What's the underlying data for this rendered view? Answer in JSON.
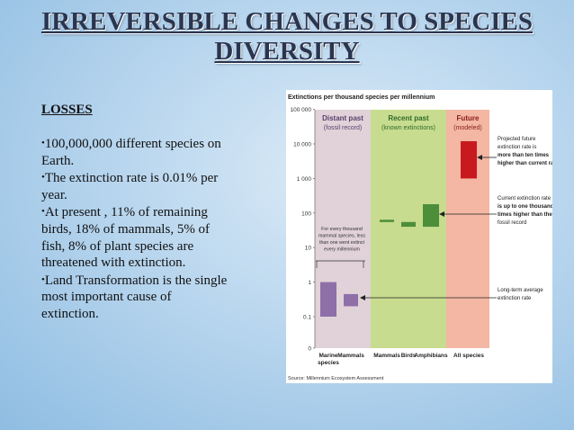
{
  "slide": {
    "title_line1": "IRREVERSIBLE CHANGES TO SPECIES",
    "title_line2": "DIVERSITY",
    "heading": "LOSSES",
    "bullets": [
      "100,000,000 different species on Earth.",
      "The extinction rate is 0.01% per year.",
      "At present , 11% of remaining birds, 18% of mammals, 5% of fish, 8% of plant species are threatened with extinction.",
      "Land Transformation is the single most important cause of extinction."
    ]
  },
  "chart_data": {
    "type": "bar",
    "title": "Extinctions per thousand species per millennium",
    "y_scale": "log",
    "y_ticks": [
      "100 000",
      "10 000",
      "1 000",
      "100",
      "10",
      "1",
      "0.1",
      "0"
    ],
    "panels": [
      {
        "title": "Distant past",
        "subtitle": "(fossil record)",
        "color": "#e0d2d8"
      },
      {
        "title": "Recent past",
        "subtitle": "(known extinctions)",
        "color": "#c7dc8e"
      },
      {
        "title": "Future",
        "subtitle": "(modeled)",
        "color": "#f3b7a3"
      }
    ],
    "categories": [
      "Marine species",
      "Mammals",
      "Mammals",
      "Birds",
      "Amphibians",
      "All species"
    ],
    "series": [
      {
        "category": "Marine species",
        "panel": "Distant past",
        "low": 0.1,
        "high": 1,
        "color": "#8e6fa8"
      },
      {
        "category": "Mammals",
        "panel": "Distant past",
        "low": 0.2,
        "high": 0.45,
        "color": "#8e6fa8"
      },
      {
        "category": "Mammals",
        "panel": "Recent past",
        "low": 60,
        "high": 60,
        "color": "#4d8e3a"
      },
      {
        "category": "Birds",
        "panel": "Recent past",
        "low": 40,
        "high": 55,
        "color": "#4d8e3a"
      },
      {
        "category": "Amphibians",
        "panel": "Recent past",
        "low": 40,
        "high": 180,
        "color": "#4d8e3a"
      },
      {
        "category": "All species",
        "panel": "Future",
        "low": 1000,
        "high": 12000,
        "color": "#c8191e"
      }
    ],
    "inside_note": [
      "For every thousand",
      "mammal species, less",
      "than one went extinct",
      "every millennium"
    ],
    "annotations": [
      {
        "lines": [
          "Projected future",
          "extinction rate is",
          "more than ten times",
          "higher than current rate"
        ]
      },
      {
        "lines": [
          "Current extinction rate",
          "is up to one thousand",
          "times higher than the",
          "fossil record"
        ]
      },
      {
        "lines": [
          "Long-term average",
          "extinction rate"
        ]
      }
    ],
    "source": "Source: Millennium Ecosystem Assessment"
  }
}
